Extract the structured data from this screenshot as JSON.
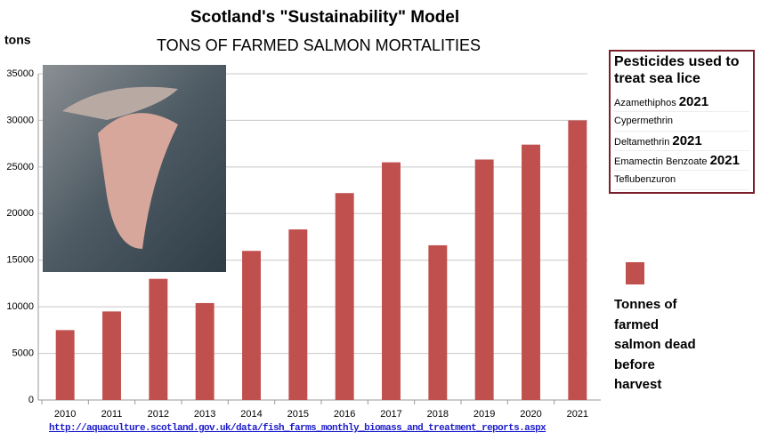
{
  "chart_data": {
    "type": "bar",
    "title": "Scotland's \"Sustainability\" Model",
    "subtitle": "TONS OF FARMED SALMON MORTALITIES",
    "y_label": "tons",
    "categories": [
      "2010",
      "2011",
      "2012",
      "2013",
      "2014",
      "2015",
      "2016",
      "2017",
      "2018",
      "2019",
      "2020",
      "2021"
    ],
    "series": [
      {
        "name": "Tonnes of farmed salmon dead before harvest",
        "color": "#c0504d",
        "values": [
          7500,
          9500,
          13000,
          10400,
          16000,
          18300,
          22200,
          25500,
          16600,
          25800,
          27400,
          30000
        ]
      }
    ],
    "ylim": [
      0,
      35000
    ],
    "yticks": [
      0,
      5000,
      10000,
      15000,
      20000,
      25000,
      30000,
      35000
    ],
    "grid": true,
    "source": "http://aquaculture.scotland.gov.uk/data/fish_farms_monthly_biomass_and_treatment_reports.aspx"
  },
  "pesticides": {
    "title": "Pesticides used to treat sea lice",
    "items": [
      {
        "name": "Azamethiphos",
        "year": "2021"
      },
      {
        "name": "Cypermethrin"
      },
      {
        "name": "Deltamethrin",
        "year": "2021"
      },
      {
        "name": "Emamectin Benzoate",
        "year": "2021"
      },
      {
        "name": "Teflubenzuron"
      }
    ]
  }
}
